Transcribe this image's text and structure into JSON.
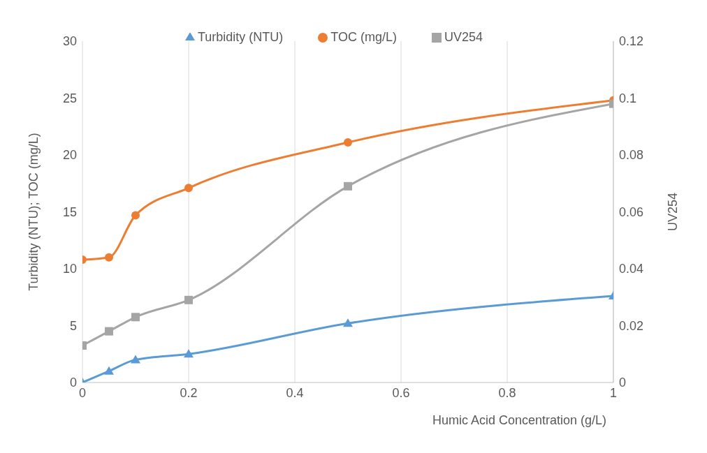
{
  "chart_data": {
    "type": "line",
    "xlabel": "Humic Acid Concentration (g/L)",
    "ylabel": "Turbidity (NTU); TOC (mg/L)",
    "y2label": "UV254",
    "x": [
      0,
      0.05,
      0.1,
      0.2,
      0.5,
      1
    ],
    "series": [
      {
        "name": "Turbidity (NTU)",
        "color": "#5b9bd5",
        "marker": "triangle",
        "values": [
          0,
          1.0,
          2.0,
          2.5,
          5.2,
          7.6
        ]
      },
      {
        "name": "TOC (mg/L)",
        "color": "#ed7d31",
        "marker": "circle",
        "values": [
          10.8,
          11.0,
          14.7,
          17.1,
          21.1,
          24.8
        ]
      },
      {
        "name": "UV254",
        "color": "#a5a5a5",
        "marker": "square",
        "axis": "y2",
        "values": [
          0.013,
          0.018,
          0.023,
          0.029,
          0.069,
          0.098
        ]
      }
    ],
    "xlim": [
      0,
      1
    ],
    "xticks": [
      0,
      0.2,
      0.4,
      0.6,
      0.8,
      1
    ],
    "ylim": [
      0,
      30
    ],
    "yticks": [
      0,
      5,
      10,
      15,
      20,
      25,
      30
    ],
    "y2lim": [
      0,
      0.12
    ],
    "y2ticks": [
      0,
      0.02,
      0.04,
      0.06,
      0.08,
      0.1,
      0.12
    ],
    "grid": "x",
    "legend": "top",
    "line_style": "solid"
  }
}
